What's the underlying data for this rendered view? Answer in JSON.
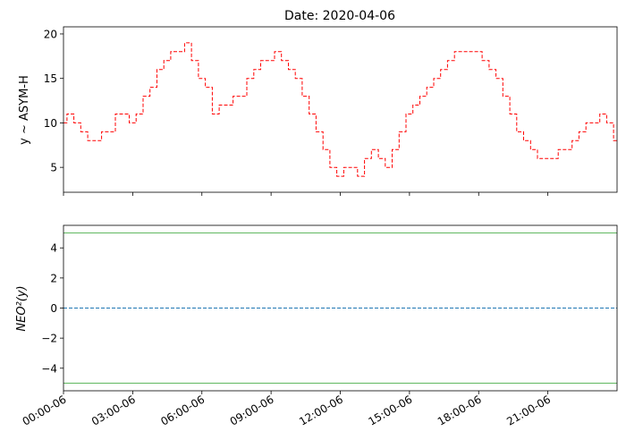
{
  "figure": {
    "title": "Date: 2020-04-06"
  },
  "chart_data": [
    {
      "type": "line",
      "name": "top-panel",
      "ylabel": "y ~ ASYM-H",
      "xlim": [
        0,
        24
      ],
      "ylim": [
        2.2,
        20.8
      ],
      "yticks": [
        5,
        10,
        15,
        20
      ],
      "grid": false,
      "series": [
        {
          "color": "#ff0000",
          "style": "dashed",
          "x": [
            0,
            0.3,
            0.6,
            0.9,
            1.2,
            1.5,
            1.8,
            2.1,
            2.4,
            2.7,
            3.0,
            3.3,
            3.6,
            3.9,
            4.2,
            4.5,
            4.8,
            5.1,
            5.4,
            5.7,
            6.0,
            6.3,
            6.6,
            6.9,
            7.2,
            7.5,
            7.8,
            8.1,
            8.4,
            8.7,
            9.0,
            9.3,
            9.6,
            9.9,
            10.2,
            10.5,
            10.8,
            11.1,
            11.4,
            11.7,
            12.0,
            12.3,
            12.6,
            12.9,
            13.2,
            13.5,
            13.8,
            14.1,
            14.4,
            14.7,
            15.0,
            15.3,
            15.6,
            15.9,
            16.2,
            16.5,
            16.8,
            17.1,
            17.4,
            17.7,
            18.0,
            18.3,
            18.6,
            18.9,
            19.2,
            19.5,
            19.8,
            20.1,
            20.4,
            20.7,
            21.0,
            21.3,
            21.6,
            21.9,
            22.2,
            22.5,
            22.8,
            23.1,
            23.4,
            23.7,
            24.0
          ],
          "y": [
            10,
            11,
            10,
            9,
            8,
            8,
            9,
            9,
            11,
            11,
            10,
            11,
            13,
            14,
            16,
            17,
            18,
            18,
            19,
            17,
            15,
            14,
            11,
            12,
            12,
            13,
            13,
            15,
            16,
            17,
            17,
            18,
            17,
            16,
            15,
            13,
            11,
            9,
            7,
            5,
            4,
            5,
            5,
            4,
            6,
            7,
            6,
            5,
            7,
            9,
            11,
            12,
            13,
            14,
            15,
            16,
            17,
            18,
            18,
            18,
            18,
            17,
            16,
            15,
            13,
            11,
            9,
            8,
            7,
            6,
            6,
            6,
            7,
            7,
            8,
            9,
            10,
            10,
            11,
            10,
            8
          ]
        }
      ]
    },
    {
      "type": "line",
      "name": "bottom-panel",
      "ylabel": "NEO²(y)",
      "xlim": [
        0,
        24
      ],
      "ylim": [
        -5.5,
        5.5
      ],
      "yticks": [
        -4,
        -2,
        0,
        2,
        4
      ],
      "grid": false,
      "xticks": [
        0,
        3,
        6,
        9,
        12,
        15,
        18,
        21
      ],
      "xticklabels": [
        "00:00-06",
        "03:00-06",
        "06:00-06",
        "09:00-06",
        "12:00-06",
        "15:00-06",
        "18:00-06",
        "21:00-06"
      ],
      "series": [
        {
          "color": "#1f77b4",
          "style": "dashed",
          "x": [
            0,
            3,
            6,
            9,
            12,
            15,
            18,
            21,
            24
          ],
          "y": [
            0,
            0,
            0,
            0,
            0,
            0,
            0,
            0,
            0
          ]
        }
      ],
      "thresholds": [
        {
          "y": 5,
          "color": "#2ca02c"
        },
        {
          "y": -5,
          "color": "#2ca02c"
        }
      ]
    }
  ]
}
